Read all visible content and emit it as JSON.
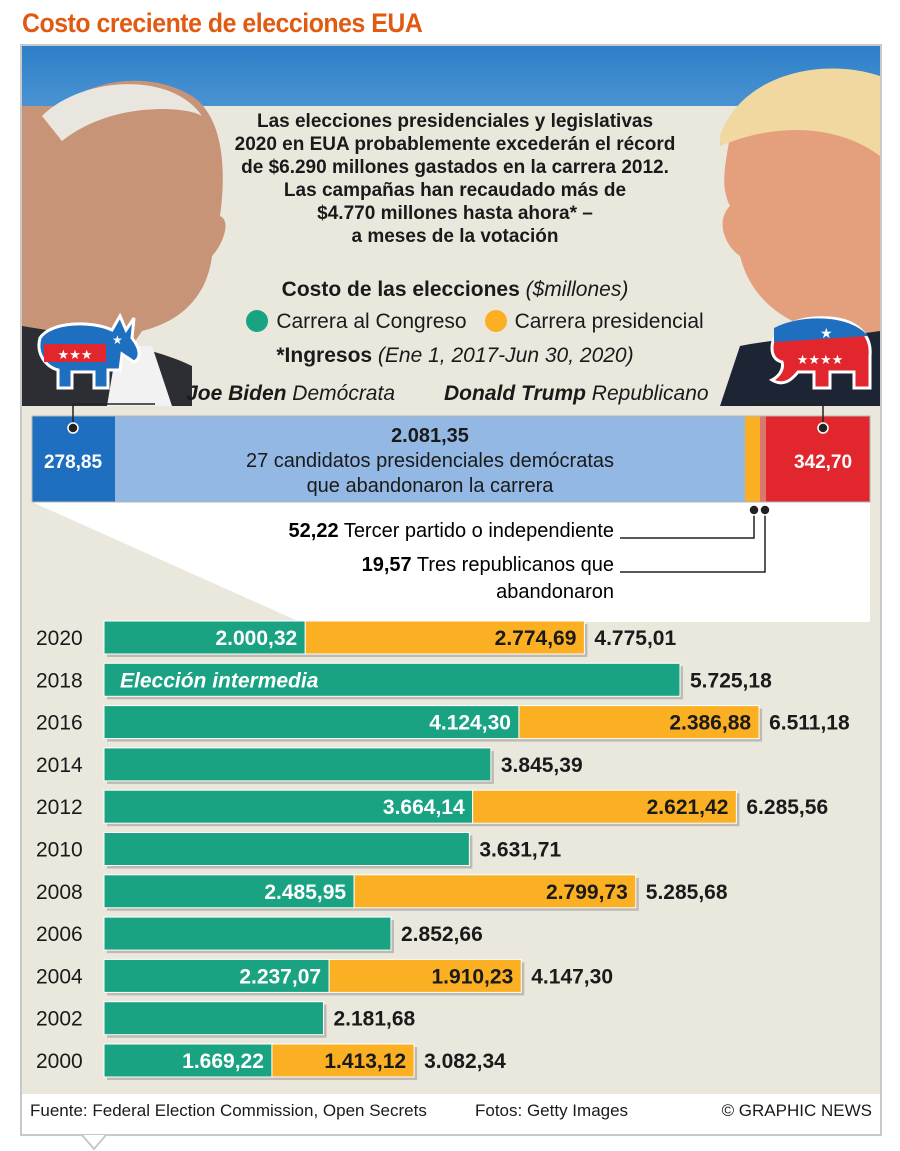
{
  "title": "Costo creciente de elecciones EUA",
  "intro_lines": [
    "Las elecciones presidenciales y legislativas",
    "2020 en EUA probablemente excederán el récord",
    "de $6.290 millones gastados en la carrera 2012.",
    "Las campañas han recaudado más de",
    "$4.770 millones hasta ahora* –",
    "a meses de la votación"
  ],
  "legend": {
    "title": "Costo de las elecciones",
    "unit": "($millones)",
    "congress": "Carrera al Congreso",
    "presidential": "Carrera presidencial",
    "note_label": "*Ingresos",
    "note_period": "(Ene 1, 2017-Jun 30, 2020)"
  },
  "candidates": {
    "biden_name": "Joe Biden",
    "biden_party": "Demócrata",
    "trump_name": "Donald Trump",
    "trump_party": "Republicano"
  },
  "breakdown": {
    "biden": "278,85",
    "dropouts_dem_value": "2.081,35",
    "dropouts_dem_line1": "27 candidatos presidenciales demócratas",
    "dropouts_dem_line2": "que abandonaron la carrera",
    "trump": "342,70",
    "third_party_value": "52,22",
    "third_party_label": "Tercer partido o independiente",
    "rep_dropouts_value": "19,57",
    "rep_dropouts_line1": "Tres republicanos que",
    "rep_dropouts_line2": "abandonaron",
    "values_numeric": {
      "biden": 278.85,
      "dem_dropouts": 2081.35,
      "third_party": 52.22,
      "rep_dropouts": 19.57,
      "trump": 342.7
    }
  },
  "colors": {
    "congress": "#1aa383",
    "presidential": "#fbb024",
    "democrat": "#1f6fc0",
    "democrat_light": "#93b8e4",
    "republican": "#e1272d",
    "title": "#e05a12"
  },
  "chart_data": {
    "type": "bar",
    "orientation": "horizontal",
    "stacked": true,
    "categories": [
      "2020",
      "2018",
      "2016",
      "2014",
      "2012",
      "2010",
      "2008",
      "2006",
      "2004",
      "2002",
      "2000"
    ],
    "series": [
      {
        "name": "Carrera al Congreso",
        "values": [
          2000.32,
          5725.18,
          4124.3,
          3845.39,
          3664.14,
          3631.71,
          2485.95,
          2852.66,
          2237.07,
          2181.68,
          1669.22
        ]
      },
      {
        "name": "Carrera presidencial",
        "values": [
          2774.69,
          0,
          2386.88,
          0,
          2621.42,
          0,
          2799.73,
          0,
          1910.23,
          0,
          1413.12
        ]
      }
    ],
    "congress_labels": [
      "2.000,32",
      "",
      "4.124,30",
      "",
      "3.664,14",
      "",
      "2.485,95",
      "",
      "2.237,07",
      "",
      "1.669,22"
    ],
    "presidential_labels": [
      "2.774,69",
      "",
      "2.386,88",
      "",
      "2.621,42",
      "",
      "2.799,73",
      "",
      "1.910,23",
      "",
      "1.413,12"
    ],
    "total_labels": [
      "4.775,01",
      "5.725,18",
      "6.511,18",
      "3.845,39",
      "6.285,56",
      "3.631,71",
      "5.285,68",
      "2.852,66",
      "4.147,30",
      "2.181,68",
      "3.082,34"
    ],
    "annotation": "Elección intermedia",
    "unit": "$millones"
  },
  "footer": {
    "source": "Fuente: Federal Election Commission, Open Secrets",
    "photos": "Fotos: Getty Images",
    "copyright": "© GRAPHIC NEWS"
  }
}
